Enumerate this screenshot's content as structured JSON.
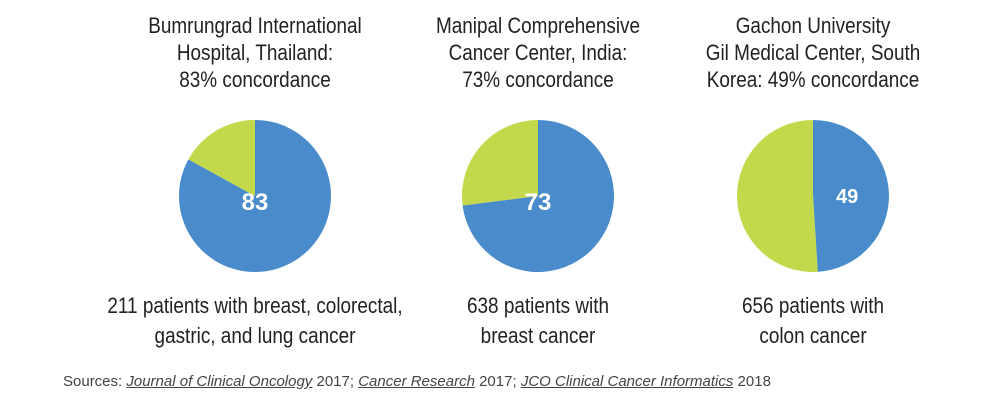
{
  "colors": {
    "concordant": "#4a8ccb",
    "discordant": "#c3d84a"
  },
  "chart_data": [
    {
      "type": "pie",
      "title_lines": [
        "Bumrungrad International",
        "Hospital, Thailand:",
        "83% concordance"
      ],
      "values": [
        83,
        17
      ],
      "data_label": "83",
      "caption_lines": [
        "211 patients with breast, colorectal,",
        "gastric, and lung cancer"
      ]
    },
    {
      "type": "pie",
      "title_lines": [
        "Manipal Comprehensive",
        "Cancer Center, India:",
        "73% concordance"
      ],
      "values": [
        73,
        27
      ],
      "data_label": "73",
      "caption_lines": [
        "638 patients with",
        "breast cancer"
      ]
    },
    {
      "type": "pie",
      "title_lines": [
        "Gachon University",
        "Gil Medical Center, South",
        "Korea: 49% concordance"
      ],
      "values": [
        49,
        51
      ],
      "data_label": "49",
      "caption_lines": [
        "656 patients with",
        "colon cancer"
      ]
    }
  ],
  "sources": {
    "prefix": "Sources: ",
    "items": [
      {
        "journal": "Journal of Clinical Oncology",
        "year": " 2017"
      },
      {
        "journal": "Cancer Research",
        "year": " 2017"
      },
      {
        "journal": "JCO Clinical Cancer Informatics",
        "year": " 2018"
      }
    ],
    "separator": "; "
  }
}
